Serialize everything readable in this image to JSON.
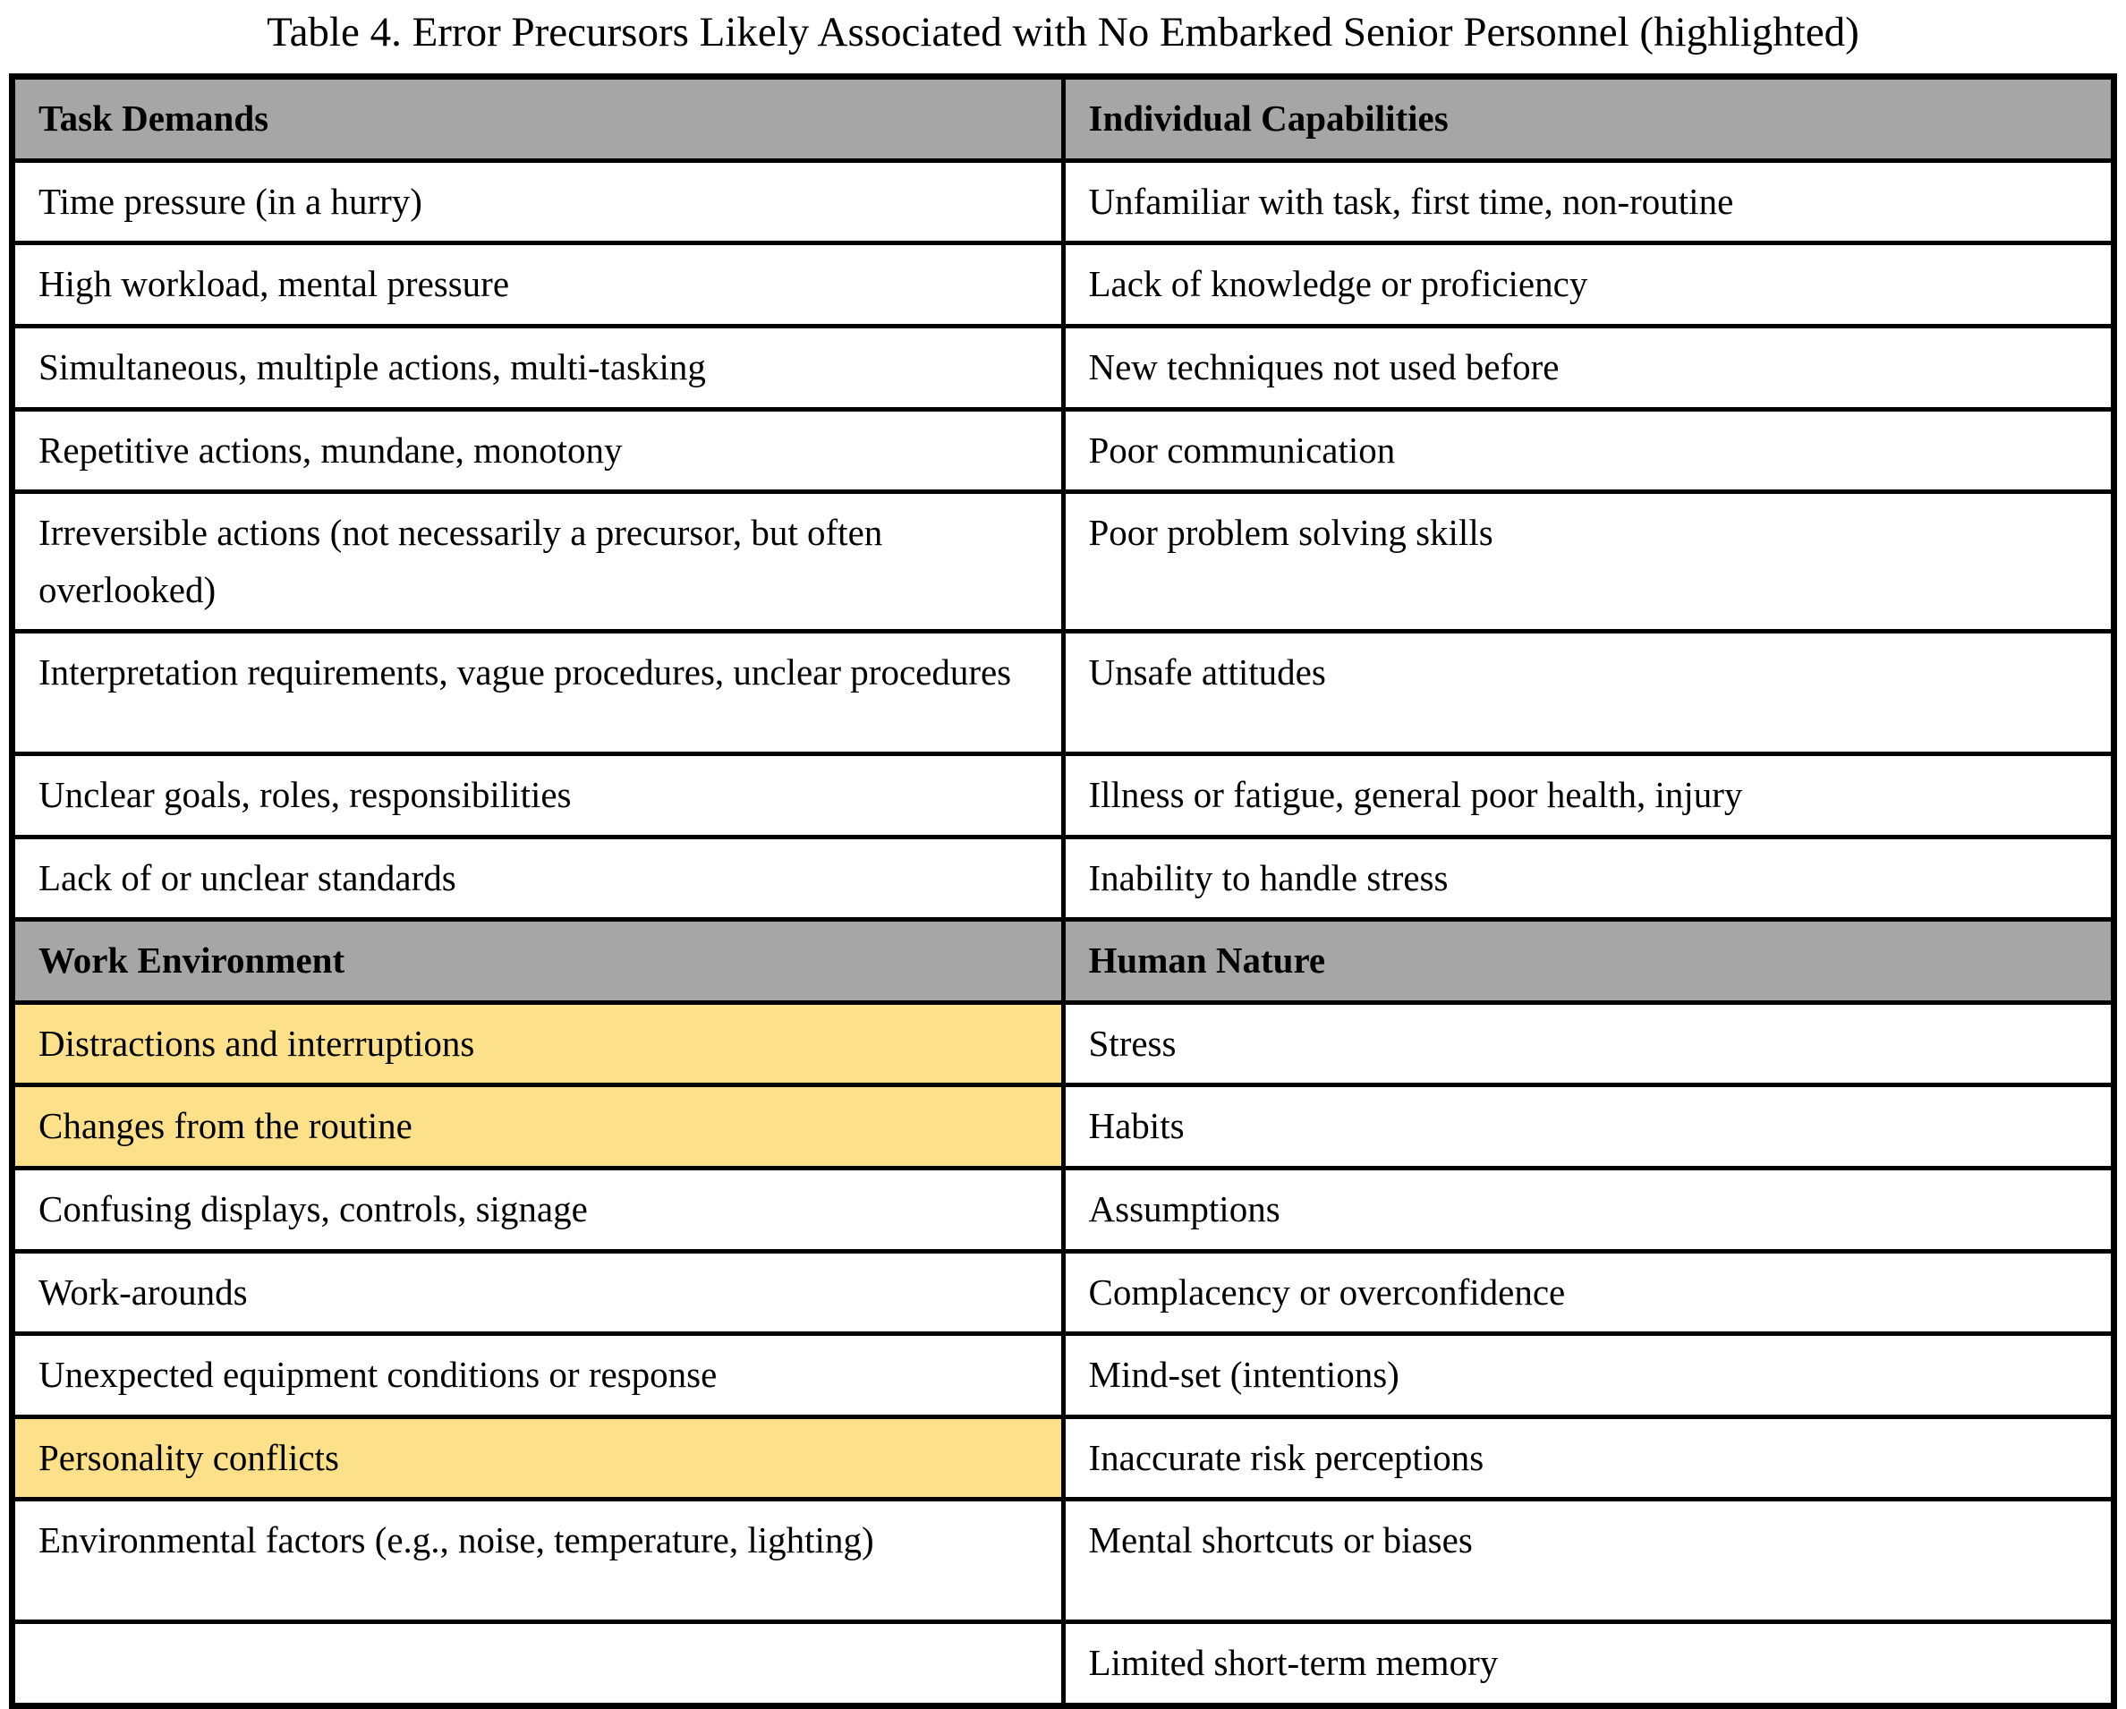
{
  "title": "Table 4. Error Precursors Likely Associated with No Embarked Senior Personnel (highlighted)",
  "colors": {
    "header_bg": "#a6a6a6",
    "highlight_bg": "#fce08a",
    "border": "#000000"
  },
  "table": {
    "sections": [
      {
        "headers": [
          "Task Demands",
          "Individual Capabilities"
        ],
        "rows": [
          {
            "left": "Time pressure (in a hurry)",
            "right": "Unfamiliar with task, first time, non-routine",
            "left_highlight": false,
            "tall": false
          },
          {
            "left": "High workload, mental pressure",
            "right": "Lack of knowledge or proficiency",
            "left_highlight": false,
            "tall": false
          },
          {
            "left": "Simultaneous, multiple actions, multi-tasking",
            "right": "New techniques not used before",
            "left_highlight": false,
            "tall": false
          },
          {
            "left": "Repetitive actions, mundane, monotony",
            "right": "Poor communication",
            "left_highlight": false,
            "tall": false
          },
          {
            "left": "Irreversible actions (not necessarily a precursor, but often overlooked)",
            "right": "Poor problem solving skills",
            "left_highlight": false,
            "tall": true
          },
          {
            "left": "Interpretation requirements, vague procedures, unclear procedures",
            "right": "Unsafe attitudes",
            "left_highlight": false,
            "tall": true
          },
          {
            "left": "Unclear goals, roles, responsibilities",
            "right": "Illness or fatigue, general poor health, injury",
            "left_highlight": false,
            "tall": false
          },
          {
            "left": "Lack of or unclear standards",
            "right": "Inability to handle stress",
            "left_highlight": false,
            "tall": false
          }
        ]
      },
      {
        "headers": [
          "Work Environment",
          "Human Nature"
        ],
        "rows": [
          {
            "left": "Distractions and interruptions",
            "right": "Stress",
            "left_highlight": true,
            "tall": false
          },
          {
            "left": "Changes from the routine",
            "right": "Habits",
            "left_highlight": true,
            "tall": false
          },
          {
            "left": "Confusing displays, controls, signage",
            "right": "Assumptions",
            "left_highlight": false,
            "tall": false
          },
          {
            "left": "Work-arounds",
            "right": "Complacency or overconfidence",
            "left_highlight": false,
            "tall": false
          },
          {
            "left": "Unexpected equipment conditions or response",
            "right": "Mind-set (intentions)",
            "left_highlight": false,
            "tall": false
          },
          {
            "left": "Personality conflicts",
            "right": "Inaccurate risk perceptions",
            "left_highlight": true,
            "tall": false
          },
          {
            "left": "Environmental factors (e.g., noise, temperature, lighting)",
            "right": "Mental shortcuts or biases",
            "left_highlight": false,
            "tall": true
          },
          {
            "left": "",
            "right": "Limited short-term memory",
            "left_highlight": false,
            "tall": false
          }
        ]
      }
    ]
  }
}
